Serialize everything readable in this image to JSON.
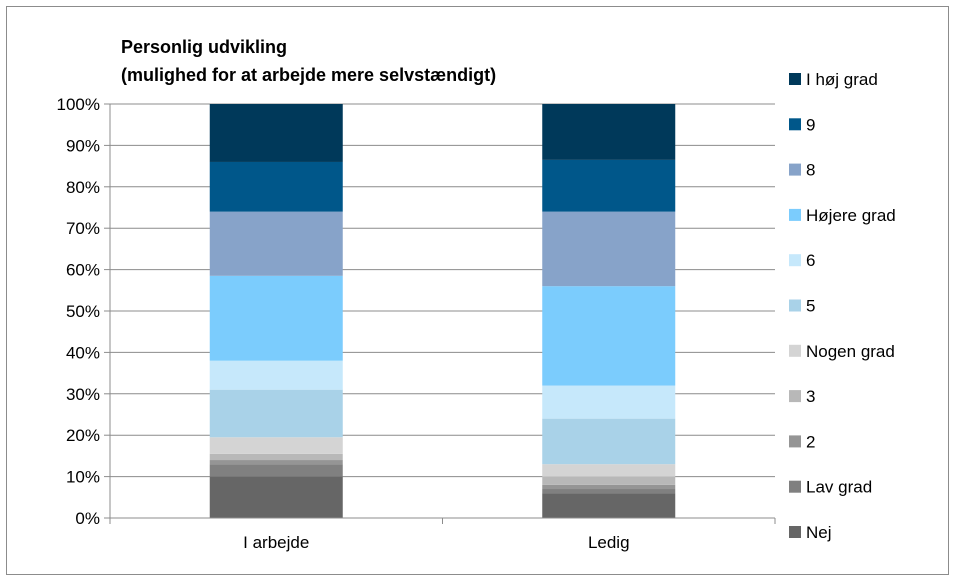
{
  "chart_data": {
    "type": "bar",
    "stacked": true,
    "stacked_percent": true,
    "title_lines": [
      "Personlig udvikling",
      "(mulighed for at arbejde mere selvstændigt)"
    ],
    "xlabel": "",
    "ylabel": "",
    "ylim": [
      0,
      100
    ],
    "yticks": [
      0,
      10,
      20,
      30,
      40,
      50,
      60,
      70,
      80,
      90,
      100
    ],
    "ytick_suffix": "%",
    "grid": true,
    "legend_position": "right",
    "categories": [
      "I arbejde",
      "Ledig"
    ],
    "series": [
      {
        "name": "Nej",
        "color": "#666666",
        "values": [
          10,
          6
        ]
      },
      {
        "name": "Lav grad",
        "color": "#808080",
        "values": [
          3,
          1
        ]
      },
      {
        "name": "2",
        "color": "#959595",
        "values": [
          1,
          1
        ]
      },
      {
        "name": "3",
        "color": "#b8b8b8",
        "values": [
          1.5,
          2
        ]
      },
      {
        "name": "Nogen grad",
        "color": "#d4d4d4",
        "values": [
          4,
          3
        ]
      },
      {
        "name": "5",
        "color": "#a9d2e8",
        "values": [
          11.5,
          11
        ]
      },
      {
        "name": "6",
        "color": "#c6e8fb",
        "values": [
          7,
          8
        ]
      },
      {
        "name": "Højere grad",
        "color": "#7bccfd",
        "values": [
          20.5,
          24
        ]
      },
      {
        "name": "8",
        "color": "#87a3c9",
        "values": [
          15.5,
          18
        ]
      },
      {
        "name": "9",
        "color": "#00578a",
        "values": [
          12,
          12.5
        ]
      },
      {
        "name": "I høj grad",
        "color": "#00395a",
        "values": [
          14,
          13.5
        ]
      }
    ]
  }
}
